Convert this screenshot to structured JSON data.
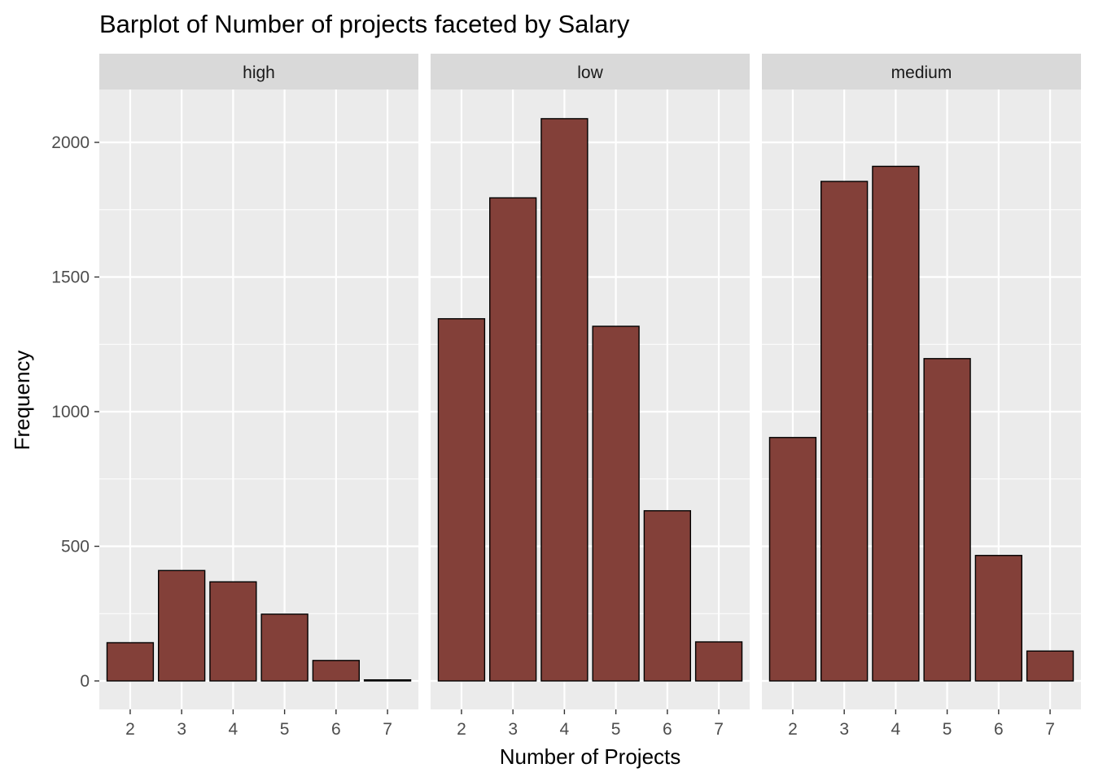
{
  "chart_data": {
    "type": "bar",
    "title": "Barplot of Number of projects faceted by Salary",
    "xlabel": "Number of Projects",
    "ylabel": "Frequency",
    "categories": [
      "2",
      "3",
      "4",
      "5",
      "6",
      "7"
    ],
    "ylim": [
      0,
      2100
    ],
    "y_ticks": [
      "0",
      "500",
      "1000",
      "1500",
      "2000"
    ],
    "grid": true,
    "bar_fill": "#834039",
    "bar_stroke": "#000000",
    "panel_background": "#ebebeb",
    "strip_background": "#d9d9d9",
    "gridline_color": "#ffffff",
    "facets": [
      {
        "label": "high",
        "values": [
          142,
          410,
          368,
          248,
          76,
          4
        ]
      },
      {
        "label": "low",
        "values": [
          1345,
          1794,
          2088,
          1317,
          632,
          145
        ]
      },
      {
        "label": "medium",
        "values": [
          904,
          1855,
          1911,
          1197,
          466,
          111
        ]
      }
    ]
  }
}
